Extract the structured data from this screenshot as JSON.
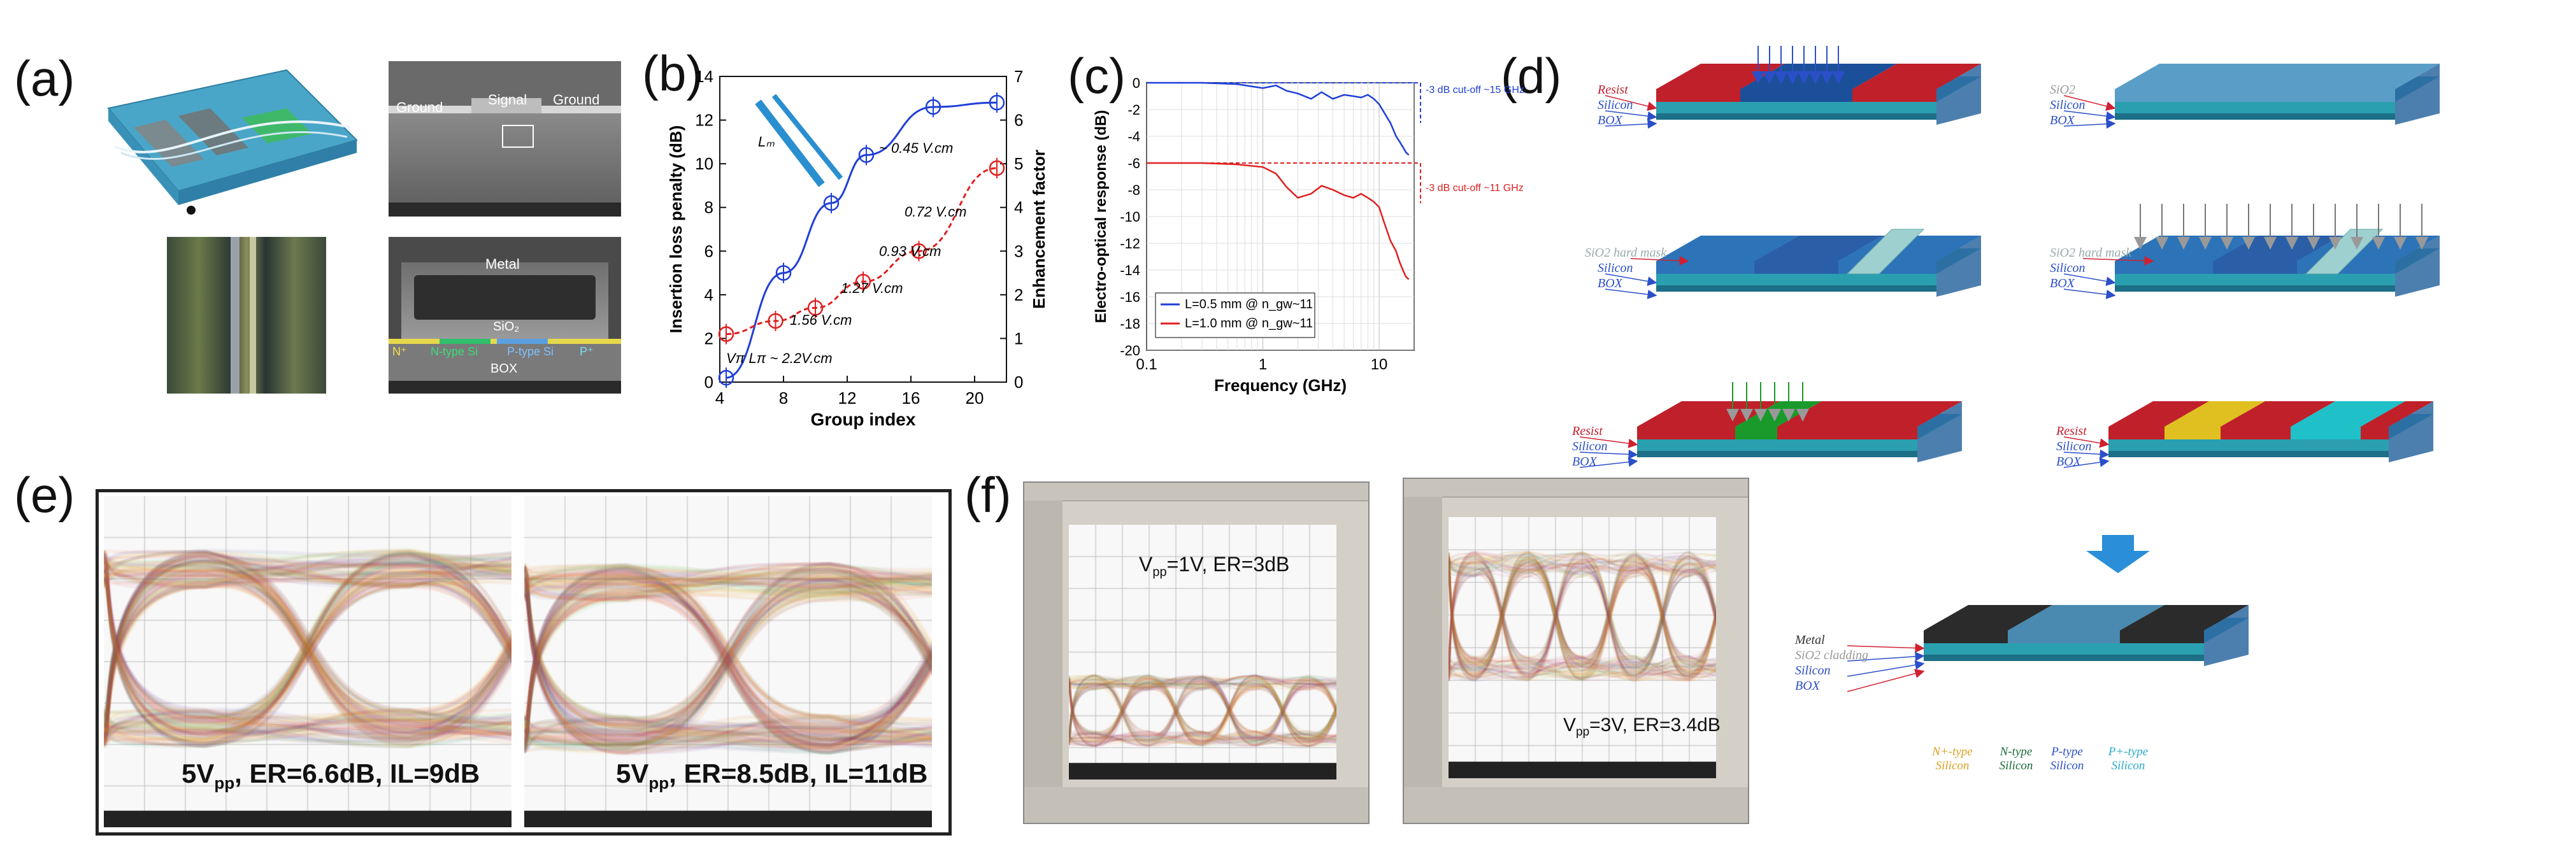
{
  "figure": {
    "panels": {
      "a": {
        "letter": "(a)"
      },
      "b": {
        "letter": "(b)"
      },
      "c": {
        "letter": "(c)"
      },
      "d": {
        "letter": "(d)"
      },
      "e": {
        "letter": "(e)"
      },
      "f": {
        "letter": "(f)"
      }
    },
    "panel_a": {
      "sem_top_labels": {
        "ground_left": "Ground",
        "signal": "Signal",
        "ground_right": "Ground"
      },
      "sem_bottom_labels": {
        "metal": "Metal",
        "sio2": "SiO₂",
        "nplus": "N⁺",
        "ntype": "N-type Si",
        "ptype": "P-type Si",
        "pplus": "P⁺",
        "box": "BOX"
      }
    },
    "panel_b_annotations": {
      "inset": "Lₘ",
      "vl": "Vπ Lπ ~ 2.2V.cm",
      "a1": "1.56 V.cm",
      "a2": "1.27 V.cm",
      "a3": "0.93 V.cm",
      "a4": "0.72 V.cm",
      "a5": "~ 0.45 V.cm"
    },
    "panel_c_annotations": {
      "blue_cutoff": "-3 dB cut-off ~15 GHz",
      "red_cutoff": "-3 dB cut-off ~11 GHz"
    },
    "panel_d_layers": {
      "resist": "Resist",
      "silicon": "Silicon",
      "box": "BOX",
      "sio2": "SiO2",
      "hardmask": "SiO2 hard mask",
      "metal": "Metal",
      "cladding": "SiO2 cladding"
    },
    "panel_d_doping": {
      "nplus": "N+-type Silicon",
      "ntype": "N-type Silicon",
      "ptype": "P-type Silicon",
      "pplus": "P+-type Silicon"
    },
    "panel_e": {
      "left_caption": "5Vpp, ER=6.6dB, IL=9dB",
      "right_caption": "5Vpp, ER=8.5dB, IL=11dB",
      "left_caption_main": "5V",
      "left_caption_sub": "pp",
      "left_caption_rest": ", ER=6.6dB, IL=9dB",
      "right_caption_main": "5V",
      "right_caption_sub": "pp",
      "right_caption_rest": ", ER=8.5dB, IL=11dB"
    },
    "panel_f": {
      "left_caption": "Vpp=1V, ER=3dB",
      "right_caption": "Vpp=3V, ER=3.4dB",
      "left_main": "V",
      "left_sub": "pp",
      "left_rest": "=1V, ER=3dB",
      "right_main": "V",
      "right_sub": "pp",
      "right_rest": "=3V, ER=3.4dB"
    },
    "colors": {
      "blue_series": "#1f3fd6",
      "red_series": "#e02020",
      "resist": "#c0202a",
      "silicon": "#2d73b8",
      "box": "#2a9fb0"
    }
  },
  "chart_data": [
    {
      "type": "line",
      "panel": "b",
      "xlabel": "Group index",
      "ylabel": "Insertion loss penalty (dB)",
      "y2label": "Enhancement factor",
      "xlim": [
        4,
        22
      ],
      "ylim": [
        0,
        14
      ],
      "y2lim": [
        0,
        7
      ],
      "x_ticks": [
        4,
        8,
        12,
        16,
        20
      ],
      "y_ticks": [
        0,
        2,
        4,
        6,
        8,
        10,
        12,
        14
      ],
      "y2_ticks": [
        0,
        1,
        2,
        3,
        4,
        5,
        6,
        7
      ],
      "series": [
        {
          "axis": "left",
          "x": [
            4.4,
            8.0,
            11.0,
            13.2,
            17.4,
            21.4
          ],
          "y": [
            0.2,
            5.0,
            8.2,
            10.4,
            12.6,
            12.8
          ]
        },
        {
          "axis": "right",
          "x": [
            4.4,
            7.5,
            10.0,
            13.0,
            16.5,
            21.4
          ],
          "y": [
            1.1,
            1.4,
            1.7,
            2.3,
            3.0,
            4.9
          ]
        }
      ]
    },
    {
      "type": "line",
      "panel": "c",
      "xlabel": "Frequency (GHz)",
      "ylabel": "Electro-optical response (dB)",
      "xscale": "log",
      "xlim": [
        0.1,
        20
      ],
      "ylim": [
        -20,
        0
      ],
      "x_ticks": [
        0.1,
        1,
        10
      ],
      "y_ticks": [
        0,
        -2,
        -4,
        -6,
        -8,
        -10,
        -12,
        -14,
        -16,
        -18,
        -20
      ],
      "series": [
        {
          "name": "L=0.5 mm @ n_gw~11",
          "x": [
            0.1,
            0.3,
            0.6,
            1.0,
            1.3,
            1.6,
            2.0,
            2.6,
            3.2,
            4.0,
            5.0,
            6.0,
            7.0,
            8.0,
            9.0,
            10.0,
            11.0,
            12.5,
            14.0,
            15.0,
            16.0,
            17.0,
            18.0
          ],
          "y": [
            0,
            0,
            -0.1,
            -0.4,
            -0.2,
            -0.6,
            -0.8,
            -1.2,
            -0.7,
            -1.2,
            -0.9,
            -1.0,
            -1.1,
            -0.9,
            -1.2,
            -1.6,
            -2.2,
            -3.0,
            -4.0,
            -4.4,
            -4.8,
            -5.2,
            -5.4
          ]
        },
        {
          "name": "L=1.0 mm @ n_gw~11",
          "x": [
            0.1,
            0.3,
            0.6,
            1.0,
            1.3,
            1.6,
            2.0,
            2.6,
            3.2,
            4.0,
            5.0,
            6.0,
            7.0,
            8.0,
            9.0,
            10.0,
            11.0,
            12.5,
            14.0,
            15.0,
            16.0,
            17.0,
            18.0
          ],
          "y": [
            -6.0,
            -6.0,
            -6.1,
            -6.3,
            -6.8,
            -7.8,
            -8.6,
            -8.3,
            -7.7,
            -8.0,
            -8.4,
            -8.6,
            -8.3,
            -8.6,
            -8.9,
            -9.3,
            -10.4,
            -11.8,
            -12.6,
            -13.4,
            -14.0,
            -14.5,
            -14.7
          ]
        }
      ]
    }
  ]
}
